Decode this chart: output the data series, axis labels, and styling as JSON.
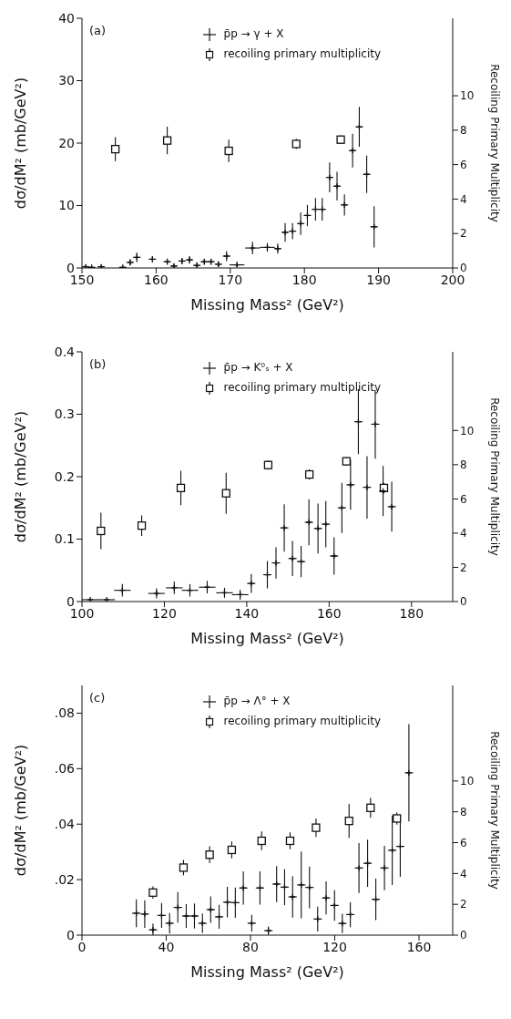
{
  "chart_data": [
    {
      "type": "scatter",
      "xlabel": "Missing Mass² (GeV²)",
      "ylabel": "dσ/dM² (mb/GeV²)",
      "y2label": "Recoiling   Primary  Multiplicity",
      "annotations": [
        "(a)"
      ],
      "xlim": [
        150,
        200
      ],
      "xticks": [
        150,
        160,
        170,
        180,
        190,
        200
      ],
      "ylim": [
        0,
        40
      ],
      "yticks": [
        0,
        10,
        20,
        30,
        40
      ],
      "y2lim": [
        0,
        14.5
      ],
      "y2ticks": [
        0,
        2,
        4,
        6,
        8,
        10
      ],
      "legend": "top",
      "series": [
        {
          "name": "p̄p → γ + X",
          "color": "#111111",
          "marker": "cross",
          "x": [
            150.5,
            151.3,
            152.6,
            155.5,
            156.5,
            157.4,
            159.5,
            161.5,
            162.4,
            163.5,
            164.5,
            165.5,
            166.5,
            167.4,
            168.4,
            169.5,
            170.9,
            173,
            175,
            176.4,
            177.4,
            178.4,
            179.5,
            180.4,
            181.5,
            182.4,
            183.4,
            184.4,
            185.4,
            186.5,
            187.4,
            188.4,
            189.4
          ],
          "values": [
            0.2,
            0.1,
            0.2,
            0.1,
            0.9,
            1.7,
            1.4,
            1.0,
            0.3,
            1.1,
            1.3,
            0.4,
            1.0,
            1.0,
            0.6,
            1.9,
            0.5,
            3.2,
            3.3,
            3.1,
            5.7,
            5.9,
            7.1,
            8.4,
            9.4,
            9.4,
            14.5,
            13.1,
            10.1,
            18.8,
            22.6,
            15,
            6.6
          ],
          "errors": [
            [
              0.2,
              0.3
            ],
            [
              0.1,
              0.3
            ],
            [
              0.2,
              0.3
            ],
            [
              0.1,
              0.3
            ],
            0.5,
            0.8,
            0.5,
            0.5,
            [
              0.3,
              0.4
            ],
            0.5,
            0.6,
            [
              0.4,
              0.5
            ],
            0.5,
            0.5,
            0.5,
            0.8,
            0.4,
            1,
            0.7,
            0.8,
            1.5,
            1.3,
            1.8,
            1.7,
            1.8,
            1.8,
            2.4,
            2.3,
            1.7,
            2.7,
            3.2,
            3,
            3.3
          ],
          "xerrors": [
            0.5,
            0.5,
            0.5,
            0.5,
            0.5,
            0.5,
            0.5,
            0.5,
            0.5,
            0.5,
            0.5,
            0.5,
            0.5,
            0.5,
            0.5,
            0.5,
            1,
            1,
            1,
            0.5,
            0.5,
            0.5,
            0.5,
            0.5,
            0.5,
            0.5,
            0.5,
            0.5,
            0.5,
            0.5,
            0.5,
            0.5,
            0.5
          ]
        },
        {
          "name": "recoiling primary multiplicity",
          "color": "#111111",
          "marker": "square",
          "axis": "y2",
          "x": [
            154.5,
            161.5,
            169.8,
            178.9,
            184.9
          ],
          "values": [
            6.9,
            7.4,
            6.8,
            7.2,
            7.45
          ],
          "errors": [
            0.7,
            0.8,
            0.65,
            0.3,
            0.25
          ]
        }
      ]
    },
    {
      "type": "scatter",
      "xlabel": "Missing Mass² (GeV²)",
      "ylabel": "dσ/dM² (mb/GeV²)",
      "y2label": "Recoiling   Primary  Multiplicity",
      "annotations": [
        "(b)"
      ],
      "xlim": [
        100,
        190
      ],
      "xticks": [
        100,
        120,
        140,
        160,
        180
      ],
      "ylim": [
        0,
        0.4
      ],
      "yticks": [
        0,
        0.1,
        0.2,
        0.3,
        0.4
      ],
      "y2lim": [
        0,
        14.6
      ],
      "y2ticks": [
        0,
        2,
        4,
        6,
        8,
        10
      ],
      "legend": "top",
      "series": [
        {
          "name": "p̄p → K⁰ₛ + X",
          "color": "#111111",
          "marker": "cross",
          "x": [
            102,
            106,
            109.8,
            118.1,
            122.4,
            126.2,
            130.4,
            134.6,
            138.4,
            141.1,
            145,
            147.1,
            149.1,
            151.1,
            153.2,
            155.1,
            157.3,
            159.2,
            161.2,
            163.1,
            165.2,
            167.1,
            169.2,
            171.2,
            173.1,
            175.2
          ],
          "values": [
            0.003,
            0.003,
            0.018,
            0.013,
            0.022,
            0.018,
            0.023,
            0.014,
            0.011,
            0.029,
            0.043,
            0.062,
            0.118,
            0.069,
            0.064,
            0.127,
            0.117,
            0.124,
            0.073,
            0.15,
            0.187,
            0.288,
            0.183,
            0.284,
            0.177,
            0.152
          ],
          "errors": [
            null,
            null,
            0.01,
            0.008,
            0.01,
            0.01,
            0.01,
            0.008,
            0.008,
            0.015,
            0.022,
            0.025,
            0.038,
            0.028,
            0.025,
            0.037,
            0.04,
            0.037,
            0.03,
            0.04,
            0.04,
            0.052,
            0.05,
            0.055,
            0.04,
            0.04
          ],
          "xerrors": [
            2,
            2,
            2,
            2,
            2,
            2,
            2,
            2,
            2,
            1,
            1,
            1,
            1,
            1,
            1,
            1,
            1,
            1,
            1,
            1,
            1,
            1,
            1,
            1,
            1,
            1
          ]
        },
        {
          "name": "recoiling primary multiplicity",
          "color": "#111111",
          "marker": "square",
          "axis": "y2",
          "x": [
            104.6,
            114.5,
            124,
            135,
            145.2,
            155.2,
            164.2,
            173.3
          ],
          "values": [
            4.13,
            4.44,
            6.64,
            6.33,
            7.98,
            7.43,
            8.2,
            6.64
          ],
          "errors": [
            1.07,
            0.6,
            1.0,
            1.2,
            0.27,
            0.3,
            0.25,
            0.3
          ]
        }
      ]
    },
    {
      "type": "scatter",
      "xlabel": "Missing Mass² (GeV²)",
      "ylabel": "dσ/dM² (mb/GeV²)",
      "y2label": "Recoiling   Primary  Multiplicity",
      "annotations": [
        "(c)"
      ],
      "xlim": [
        0,
        176
      ],
      "xticks": [
        0,
        40,
        80,
        120,
        160
      ],
      "ylim": [
        0,
        0.09
      ],
      "yticks": [
        0,
        {
          "value": 0.02,
          "label": ".02"
        },
        {
          "value": 0.04,
          "label": ".04"
        },
        {
          "value": 0.06,
          "label": ".06"
        },
        {
          "value": 0.08,
          "label": ".08"
        }
      ],
      "y2lim": [
        0,
        16.2
      ],
      "y2ticks": [
        0,
        2,
        4,
        6,
        8,
        10
      ],
      "legend": "top",
      "series": [
        {
          "name": "p̄p → Λ° + X",
          "color": "#111111",
          "marker": "cross",
          "x": [
            25.8,
            29.8,
            33.7,
            37.8,
            41.6,
            45.5,
            49.5,
            53.4,
            57.2,
            61.1,
            65.1,
            69,
            72.8,
            76.6,
            80.6,
            84.5,
            88.5,
            92.4,
            96.2,
            100,
            104.1,
            108,
            111.9,
            115.9,
            119.9,
            123.6,
            127.4,
            131.5,
            135.6,
            139.5,
            143.6,
            147.3,
            151.1,
            155.2
          ],
          "values": [
            0.0079,
            0.0076,
            0.0019,
            0.0071,
            0.0043,
            0.01,
            0.0069,
            0.0069,
            0.0043,
            0.0092,
            0.0066,
            0.0119,
            0.0117,
            0.017,
            0.0043,
            0.017,
            0.0016,
            0.0184,
            0.0173,
            0.0138,
            0.0181,
            0.0172,
            0.0058,
            0.0134,
            0.0107,
            0.0042,
            0.0074,
            0.0242,
            0.0259,
            0.0129,
            0.0242,
            0.0306,
            0.032,
            0.0585
          ],
          "errors": [
            0.005,
            0.005,
            [
              0.0019,
              0.0023
            ],
            0.0045,
            0.0037,
            0.0055,
            0.0043,
            0.0045,
            0.0035,
            0.0048,
            0.0043,
            0.0055,
            0.0055,
            0.006,
            0.003,
            0.006,
            0.0015,
            0.0065,
            0.0065,
            0.0075,
            0.012,
            0.0075,
            0.0045,
            0.006,
            0.0055,
            0.0035,
            0.0045,
            0.009,
            0.0085,
            0.0075,
            0.008,
            0.0125,
            0.011,
            0.0175
          ],
          "xerrors": [
            2,
            2,
            2,
            2,
            2,
            2,
            2,
            2,
            2,
            2,
            2,
            2,
            2,
            2,
            2,
            2,
            2,
            2,
            2,
            2,
            2,
            2,
            2,
            2,
            2,
            2,
            2,
            2,
            2,
            2,
            2,
            2,
            2,
            2
          ]
        },
        {
          "name": "recoiling primary multiplicity",
          "color": "#111111",
          "marker": "square",
          "axis": "y2",
          "x": [
            33.7,
            48.2,
            60.6,
            71.1,
            85.3,
            98.8,
            111.1,
            126.8,
            137,
            149.5
          ],
          "values": [
            2.76,
            4.38,
            5.22,
            5.53,
            6.12,
            6.12,
            6.97,
            7.41,
            8.26,
            7.57
          ],
          "errors": [
            0.4,
            0.5,
            0.55,
            0.55,
            0.6,
            0.55,
            0.6,
            1.1,
            0.65,
            0.4
          ]
        }
      ]
    }
  ]
}
